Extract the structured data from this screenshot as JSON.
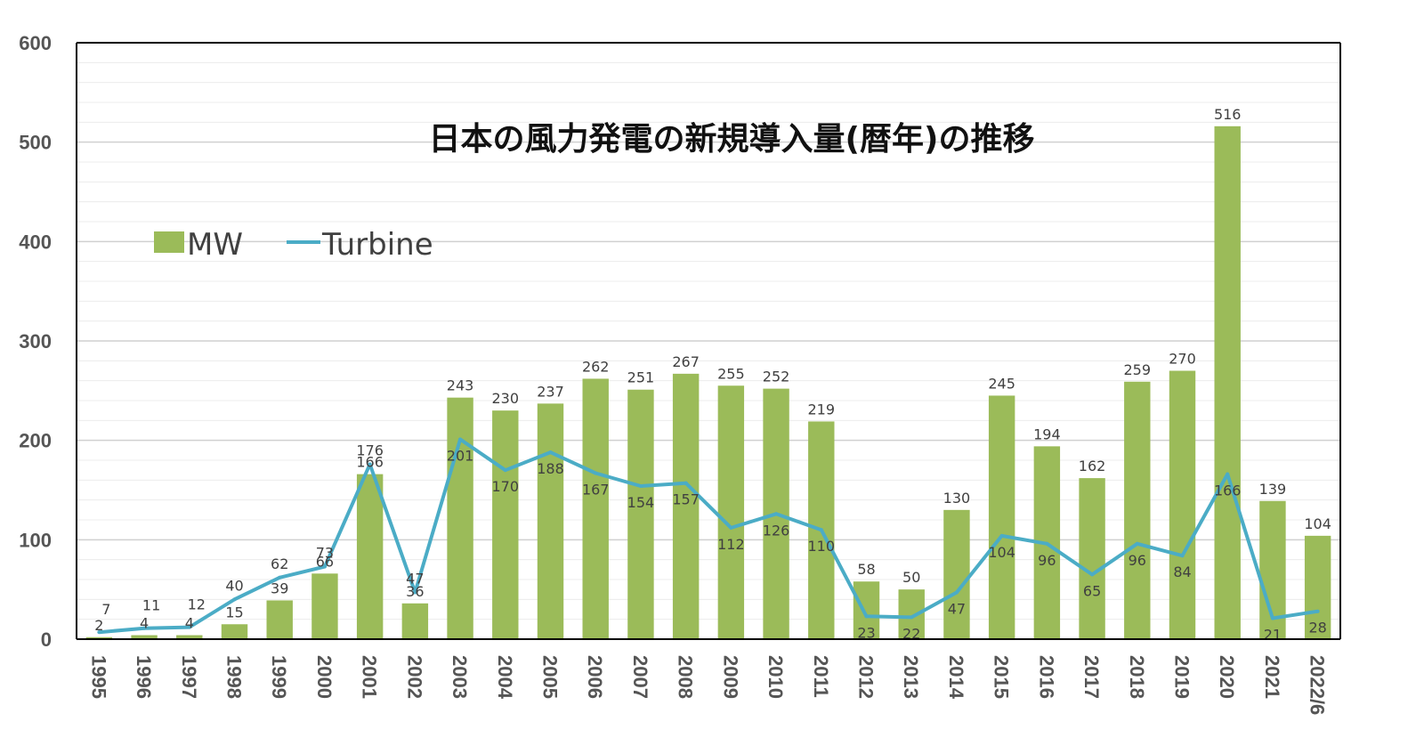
{
  "colors": {
    "bar": "#9bbb59",
    "line": "#4bacc6",
    "grid": "#d9d9d9",
    "axis": "#000000",
    "text": "#404040"
  },
  "chart_data": {
    "type": "bar",
    "title": "日本の風力発電の新規導入量(暦年)の推移",
    "xlabel": "",
    "ylabel": "",
    "ylim": [
      0,
      600
    ],
    "yticks": [
      "0",
      "100",
      "200",
      "300",
      "400",
      "500",
      "600"
    ],
    "grid": true,
    "legend_position": "top-left",
    "categories": [
      "1995",
      "1996",
      "1997",
      "1998",
      "1999",
      "2000",
      "2001",
      "2002",
      "2003",
      "2004",
      "2005",
      "2006",
      "2007",
      "2008",
      "2009",
      "2010",
      "2011",
      "2012",
      "2013",
      "2014",
      "2015",
      "2016",
      "2017",
      "2018",
      "2019",
      "2020",
      "2021",
      "2022/6"
    ],
    "series": [
      {
        "name": "MW",
        "type": "bar",
        "values": [
          2,
          4,
          4,
          15,
          39,
          66,
          166,
          36,
          243,
          230,
          237,
          262,
          251,
          267,
          255,
          252,
          219,
          58,
          50,
          130,
          245,
          194,
          162,
          259,
          270,
          516,
          139,
          104
        ]
      },
      {
        "name": "Turbine",
        "type": "line",
        "values": [
          7,
          11,
          12,
          40,
          62,
          73,
          176,
          47,
          201,
          170,
          188,
          167,
          154,
          157,
          112,
          126,
          110,
          23,
          22,
          47,
          104,
          96,
          65,
          96,
          84,
          166,
          21,
          28
        ]
      }
    ]
  }
}
